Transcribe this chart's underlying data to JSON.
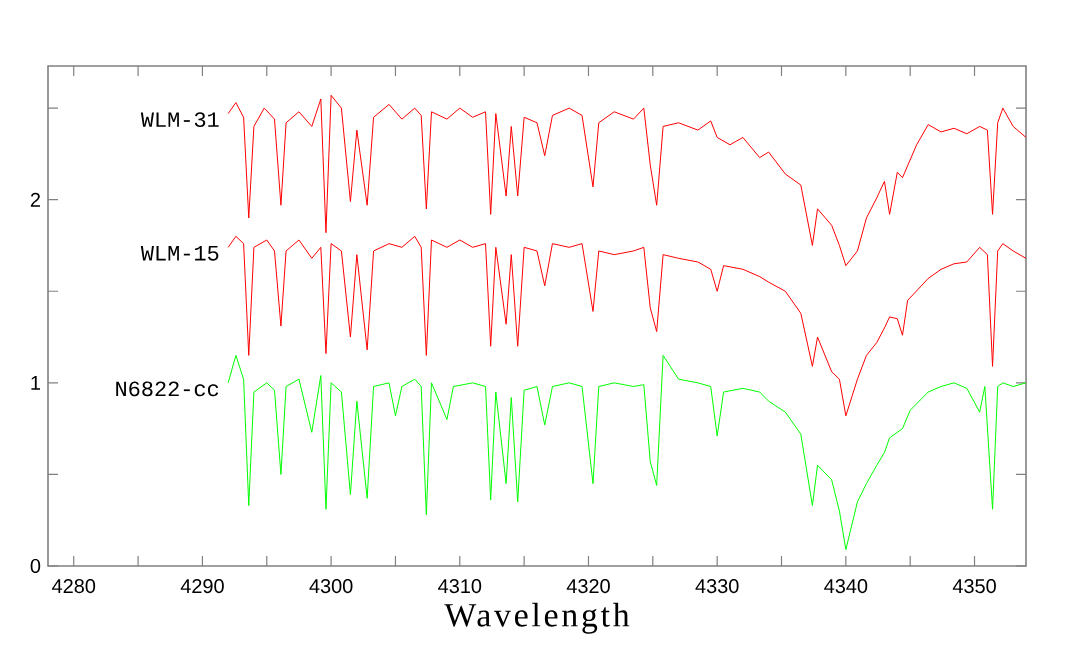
{
  "chart_data": {
    "type": "line",
    "xlabel": "Wavelength",
    "xlim": [
      4278,
      4354
    ],
    "ylim": [
      0,
      2.73
    ],
    "xticks": [
      4280,
      {
        "value": 4285,
        "label": null
      },
      4290,
      {
        "value": 4295,
        "label": null
      },
      4300,
      {
        "value": 4305,
        "label": null
      },
      4310,
      {
        "value": 4315,
        "label": null
      },
      4320,
      {
        "value": 4325,
        "label": null
      },
      4330,
      {
        "value": 4335,
        "label": null
      },
      4340,
      {
        "value": 4345,
        "label": null
      },
      4350
    ],
    "yticks": [
      0,
      {
        "value": 0.5,
        "label": null
      },
      1,
      {
        "value": 1.5,
        "label": null
      },
      2,
      {
        "value": 2.5,
        "label": null
      }
    ],
    "series": [
      {
        "name": "WLM-31",
        "color": "#ff0000",
        "x": [
          4292.0,
          4292.6,
          4293.2,
          4293.6,
          4294.0,
          4294.8,
          4295.6,
          4296.1,
          4296.5,
          4297.5,
          4298.5,
          4299.2,
          4299.6,
          4300.0,
          4300.8,
          4301.5,
          4302.0,
          4302.8,
          4303.3,
          4304.5,
          4305.5,
          4306.5,
          4307.0,
          4307.4,
          4307.8,
          4309.0,
          4310.0,
          4311.0,
          4312.0,
          4312.4,
          4312.8,
          4313.6,
          4314.0,
          4314.5,
          4315.0,
          4316.0,
          4316.6,
          4317.2,
          4318.5,
          4319.5,
          4320.35,
          4320.8,
          4322.0,
          4323.5,
          4324.3,
          4324.8,
          4325.3,
          4325.8,
          4327.0,
          4328.5,
          4329.5,
          4330.0,
          4331.0,
          4332.0,
          4333.3,
          4334.0,
          4335.3,
          4336.5,
          4337.4,
          4337.8,
          4338.9,
          4339.5,
          4340.0,
          4340.9,
          4341.6,
          4342.4,
          4343.0,
          4343.4,
          4344.0,
          4344.4,
          4345.5,
          4346.4,
          4347.4,
          4348.4,
          4349.4,
          4350.4,
          4351.0,
          4351.4,
          4351.8,
          4352.2,
          4353.0,
          4354.0
        ],
        "values": [
          2.47,
          2.53,
          2.45,
          1.9,
          2.4,
          2.5,
          2.44,
          1.97,
          2.42,
          2.48,
          2.4,
          2.55,
          1.82,
          2.57,
          2.5,
          1.99,
          2.38,
          1.97,
          2.45,
          2.52,
          2.44,
          2.5,
          2.46,
          1.95,
          2.48,
          2.44,
          2.5,
          2.45,
          2.48,
          1.92,
          2.47,
          2.02,
          2.4,
          2.02,
          2.45,
          2.42,
          2.24,
          2.46,
          2.5,
          2.46,
          2.07,
          2.42,
          2.48,
          2.44,
          2.5,
          2.19,
          1.97,
          2.4,
          2.42,
          2.38,
          2.43,
          2.34,
          2.3,
          2.34,
          2.23,
          2.26,
          2.14,
          2.08,
          1.75,
          1.95,
          1.86,
          1.75,
          1.64,
          1.72,
          1.9,
          2.01,
          2.1,
          1.92,
          2.15,
          2.12,
          2.3,
          2.41,
          2.37,
          2.39,
          2.36,
          2.4,
          2.38,
          1.92,
          2.42,
          2.5,
          2.4,
          2.34
        ]
      },
      {
        "name": "WLM-15",
        "color": "#ff0000",
        "x": [
          4292.0,
          4292.6,
          4293.2,
          4293.6,
          4294.0,
          4295.0,
          4295.6,
          4296.1,
          4296.5,
          4297.5,
          4298.5,
          4299.2,
          4299.6,
          4300.0,
          4300.8,
          4301.5,
          4302.0,
          4302.8,
          4303.3,
          4304.5,
          4305.5,
          4306.5,
          4307.0,
          4307.4,
          4307.8,
          4309.0,
          4310.0,
          4311.0,
          4312.0,
          4312.4,
          4312.8,
          4313.6,
          4314.0,
          4314.5,
          4315.0,
          4316.0,
          4316.6,
          4317.2,
          4318.5,
          4319.5,
          4320.35,
          4320.8,
          4322.0,
          4323.5,
          4324.3,
          4324.8,
          4325.3,
          4325.8,
          4327.0,
          4328.5,
          4329.5,
          4330.0,
          4330.5,
          4332.0,
          4333.3,
          4334.0,
          4335.3,
          4336.5,
          4337.4,
          4337.8,
          4338.9,
          4339.5,
          4340.0,
          4340.9,
          4341.6,
          4342.4,
          4343.0,
          4343.4,
          4344.0,
          4344.4,
          4344.8,
          4346.4,
          4347.4,
          4348.4,
          4349.4,
          4350.4,
          4351.0,
          4351.4,
          4351.8,
          4352.2,
          4353.0,
          4354.0
        ],
        "values": [
          1.74,
          1.8,
          1.76,
          1.15,
          1.74,
          1.78,
          1.72,
          1.31,
          1.72,
          1.78,
          1.68,
          1.74,
          1.16,
          1.76,
          1.72,
          1.25,
          1.7,
          1.18,
          1.72,
          1.76,
          1.74,
          1.8,
          1.74,
          1.15,
          1.78,
          1.74,
          1.78,
          1.74,
          1.76,
          1.2,
          1.74,
          1.32,
          1.7,
          1.2,
          1.74,
          1.72,
          1.53,
          1.76,
          1.74,
          1.76,
          1.39,
          1.72,
          1.7,
          1.72,
          1.74,
          1.41,
          1.28,
          1.7,
          1.68,
          1.66,
          1.62,
          1.5,
          1.64,
          1.62,
          1.58,
          1.55,
          1.5,
          1.38,
          1.09,
          1.25,
          1.06,
          1.02,
          0.82,
          1.02,
          1.15,
          1.22,
          1.3,
          1.36,
          1.35,
          1.26,
          1.45,
          1.57,
          1.62,
          1.65,
          1.66,
          1.74,
          1.7,
          1.09,
          1.72,
          1.76,
          1.72,
          1.68
        ]
      },
      {
        "name": "N6822-cc",
        "color": "#00ff00",
        "x": [
          4292.0,
          4292.6,
          4293.2,
          4293.6,
          4294.0,
          4295.0,
          4295.6,
          4296.1,
          4296.5,
          4297.5,
          4298.5,
          4299.2,
          4299.6,
          4300.0,
          4300.8,
          4301.5,
          4302.0,
          4302.8,
          4303.3,
          4304.5,
          4305.0,
          4305.5,
          4306.5,
          4307.0,
          4307.4,
          4307.8,
          4309.0,
          4309.5,
          4311.0,
          4312.0,
          4312.4,
          4312.8,
          4313.6,
          4314.0,
          4314.5,
          4315.0,
          4316.0,
          4316.6,
          4317.2,
          4318.5,
          4319.5,
          4320.35,
          4320.8,
          4322.0,
          4323.5,
          4324.3,
          4324.8,
          4325.3,
          4325.8,
          4327.0,
          4328.5,
          4329.5,
          4330.0,
          4330.5,
          4332.0,
          4333.3,
          4334.0,
          4335.3,
          4336.5,
          4337.4,
          4337.8,
          4338.9,
          4339.5,
          4340.0,
          4340.9,
          4341.6,
          4342.4,
          4343.0,
          4343.4,
          4344.4,
          4345.0,
          4346.4,
          4347.4,
          4348.4,
          4349.4,
          4350.4,
          4350.8,
          4351.4,
          4351.8,
          4352.2,
          4353.0,
          4354.0
        ],
        "values": [
          1.0,
          1.15,
          1.02,
          0.33,
          0.95,
          1.0,
          0.96,
          0.5,
          0.98,
          1.02,
          0.73,
          1.04,
          0.31,
          1.0,
          0.95,
          0.39,
          0.9,
          0.37,
          0.98,
          1.0,
          0.82,
          0.98,
          1.02,
          0.98,
          0.28,
          1.0,
          0.8,
          0.98,
          1.0,
          0.98,
          0.36,
          0.95,
          0.45,
          0.92,
          0.35,
          0.96,
          0.98,
          0.77,
          0.98,
          1.0,
          0.98,
          0.45,
          0.98,
          1.0,
          0.98,
          0.99,
          0.57,
          0.44,
          1.15,
          1.02,
          1.0,
          0.98,
          0.71,
          0.95,
          0.97,
          0.95,
          0.9,
          0.84,
          0.72,
          0.33,
          0.55,
          0.47,
          0.3,
          0.09,
          0.35,
          0.45,
          0.55,
          0.62,
          0.7,
          0.75,
          0.85,
          0.95,
          0.98,
          1.0,
          0.97,
          0.84,
          0.98,
          0.31,
          0.98,
          1.0,
          0.98,
          1.0
        ]
      }
    ]
  }
}
